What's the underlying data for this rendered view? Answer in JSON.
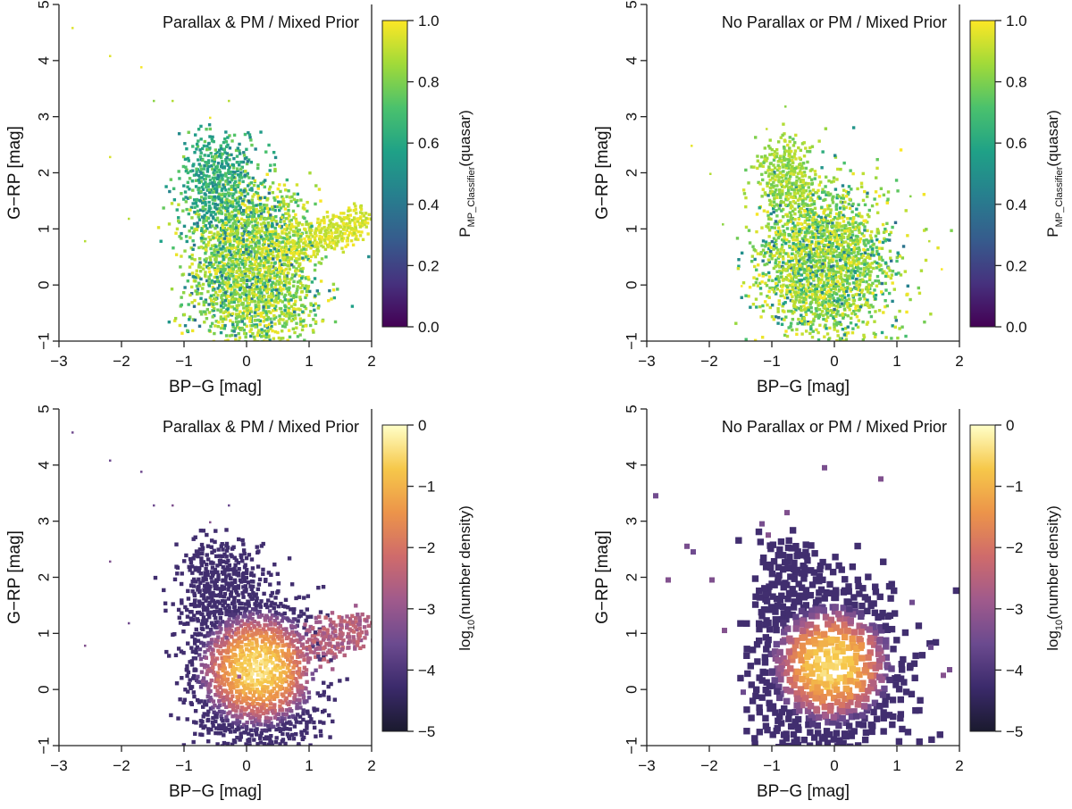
{
  "panels": [
    {
      "title": "Parallax & PM / Mixed Prior",
      "colorbar": "probability",
      "dist": "mixed"
    },
    {
      "title": "No Parallax or PM / Mixed Prior",
      "colorbar": "probability",
      "dist": "no_pm"
    },
    {
      "title": "Parallax & PM / Mixed Prior",
      "colorbar": "density",
      "dist": "mixed"
    },
    {
      "title": "No Parallax or PM / Mixed Prior",
      "colorbar": "density",
      "dist": "no_pm"
    }
  ],
  "axes": {
    "xlabel": "BP−G [mag]",
    "ylabel": "G−RP [mag]",
    "xlim": [
      -3,
      2
    ],
    "ylim": [
      -1,
      5
    ],
    "xticks": [
      "−3",
      "−2",
      "−1",
      "0",
      "1",
      "2"
    ],
    "yticks": [
      "−1",
      "0",
      "1",
      "2",
      "3",
      "4",
      "5"
    ]
  },
  "colorbars": {
    "probability": {
      "label_main": "P",
      "label_sub": "MP_Classifier",
      "label_tail": "(quasar)",
      "range": [
        0,
        1
      ],
      "ticks": [
        "0.0",
        "0.2",
        "0.4",
        "0.6",
        "0.8",
        "1.0"
      ],
      "colors": [
        "#440154",
        "#46327e",
        "#365c8d",
        "#277f8e",
        "#1fa187",
        "#4ac16d",
        "#a0da39",
        "#fde725"
      ]
    },
    "density": {
      "label_main": "log",
      "label_sub": "10",
      "label_tail": "(number density)",
      "range": [
        -5,
        0
      ],
      "ticks": [
        "−5",
        "−4",
        "−3",
        "−2",
        "−1",
        "0"
      ],
      "colors": [
        "#1a1a2e",
        "#3b2a6b",
        "#6b4a8f",
        "#a05a8c",
        "#cf6b6b",
        "#ec944a",
        "#f6c84a",
        "#ffffc8"
      ]
    }
  },
  "chart_data": [
    {
      "type": "heatmap",
      "title": "Parallax & PM / Mixed Prior",
      "xlabel": "BP−G [mag]",
      "ylabel": "G−RP [mag]",
      "xlim": [
        -3,
        2
      ],
      "ylim": [
        -1,
        5
      ],
      "color_quantity": "P_MP_Classifier(quasar)",
      "color_range": [
        0,
        1
      ],
      "distribution": {
        "core": {
          "x": 0.0,
          "y": 0.55,
          "value": 0.9
        },
        "branches": [
          {
            "name": "red branch",
            "x_range": [
              -0.8,
              -0.2
            ],
            "y_range": [
              1.2,
              2.5
            ],
            "value": 0.5
          },
          {
            "name": "blue branch",
            "x_range": [
              0.3,
              1.8
            ],
            "y_range": [
              0.9,
              1.3
            ],
            "value": 0.95
          }
        ],
        "x_extent": [
          -1.3,
          1.9
        ],
        "y_extent": [
          -1,
          2.6
        ]
      }
    },
    {
      "type": "heatmap",
      "title": "No Parallax or PM / Mixed Prior",
      "xlabel": "BP−G [mag]",
      "ylabel": "G−RP [mag]",
      "xlim": [
        -3,
        2
      ],
      "ylim": [
        -1,
        5
      ],
      "color_quantity": "P_MP_Classifier(quasar)",
      "color_range": [
        0,
        1
      ],
      "distribution": {
        "core": {
          "x": -0.2,
          "y": 0.5,
          "value": 0.9
        },
        "branches": [
          {
            "name": "red branch",
            "x_range": [
              -1.0,
              -0.5
            ],
            "y_range": [
              1.5,
              2.5
            ],
            "value": 0.85
          }
        ],
        "x_extent": [
          -1.4,
          1.0
        ],
        "y_extent": [
          -1,
          2.6
        ]
      }
    },
    {
      "type": "heatmap",
      "title": "Parallax & PM / Mixed Prior",
      "xlabel": "BP−G [mag]",
      "ylabel": "G−RP [mag]",
      "xlim": [
        -3,
        2
      ],
      "ylim": [
        -1,
        5
      ],
      "color_quantity": "log10(number density)",
      "color_range": [
        -5,
        0
      ],
      "distribution": {
        "peak": {
          "x": 0.15,
          "y": 0.4,
          "value": 0
        },
        "branches": [
          {
            "name": "red branch",
            "x_range": [
              -0.8,
              -0.2
            ],
            "y_range": [
              1.2,
              2.5
            ]
          },
          {
            "name": "blue branch",
            "x_range": [
              0.3,
              1.8
            ],
            "y_range": [
              0.9,
              1.3
            ]
          }
        ],
        "outliers": [
          [
            -2.8,
            4.6
          ],
          [
            -2.2,
            4.1
          ],
          [
            -2.2,
            2.3
          ],
          [
            -1.9,
            1.2
          ],
          [
            -1.7,
            3.9
          ],
          [
            -1.5,
            3.3
          ],
          [
            -2.6,
            0.8
          ]
        ]
      }
    },
    {
      "type": "heatmap",
      "title": "No Parallax or PM / Mixed Prior",
      "xlabel": "BP−G [mag]",
      "ylabel": "G−RP [mag]",
      "xlim": [
        -3,
        2
      ],
      "ylim": [
        -1,
        5
      ],
      "color_quantity": "log10(number density)",
      "color_range": [
        -5,
        0
      ],
      "distribution": {
        "peak": {
          "x": -0.1,
          "y": 0.5,
          "value": 0
        },
        "outliers": [
          [
            -2.9,
            3.5
          ],
          [
            -2.7,
            2.0
          ],
          [
            -2.4,
            2.6
          ],
          [
            -1.2,
            3.0
          ],
          [
            -0.2,
            4.0
          ],
          [
            0.7,
            3.8
          ],
          [
            1.8,
            0.4
          ],
          [
            2.0,
            -0.2
          ]
        ]
      }
    }
  ]
}
